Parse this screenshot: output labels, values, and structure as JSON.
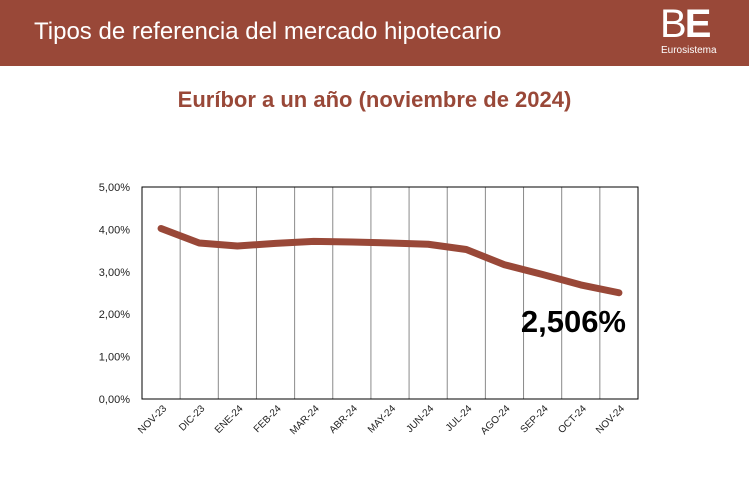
{
  "header": {
    "title": "Tipos de referencia del mercado hipotecario",
    "logo_text": "BE",
    "logo_subtitle": "Eurosistema"
  },
  "colors": {
    "brand": "#994838",
    "line": "#994838"
  },
  "chart_data": {
    "type": "line",
    "title": "Euríbor a un año (noviembre de 2024)",
    "categories": [
      "NOV-23",
      "DIC-23",
      "ENE-24",
      "FEB-24",
      "MAR-24",
      "ABR-24",
      "MAY-24",
      "JUN-24",
      "JUL-24",
      "AGO-24",
      "SEP-24",
      "OCT-24",
      "NOV-24"
    ],
    "values": [
      4.022,
      3.679,
      3.609,
      3.671,
      3.718,
      3.703,
      3.68,
      3.65,
      3.526,
      3.166,
      2.936,
      2.691,
      2.506
    ],
    "ylim": [
      0,
      5
    ],
    "yticks": [
      "0,00%",
      "1,00%",
      "2,00%",
      "3,00%",
      "4,00%",
      "5,00%"
    ],
    "grid": "vertical",
    "annotation": "2,506%"
  }
}
